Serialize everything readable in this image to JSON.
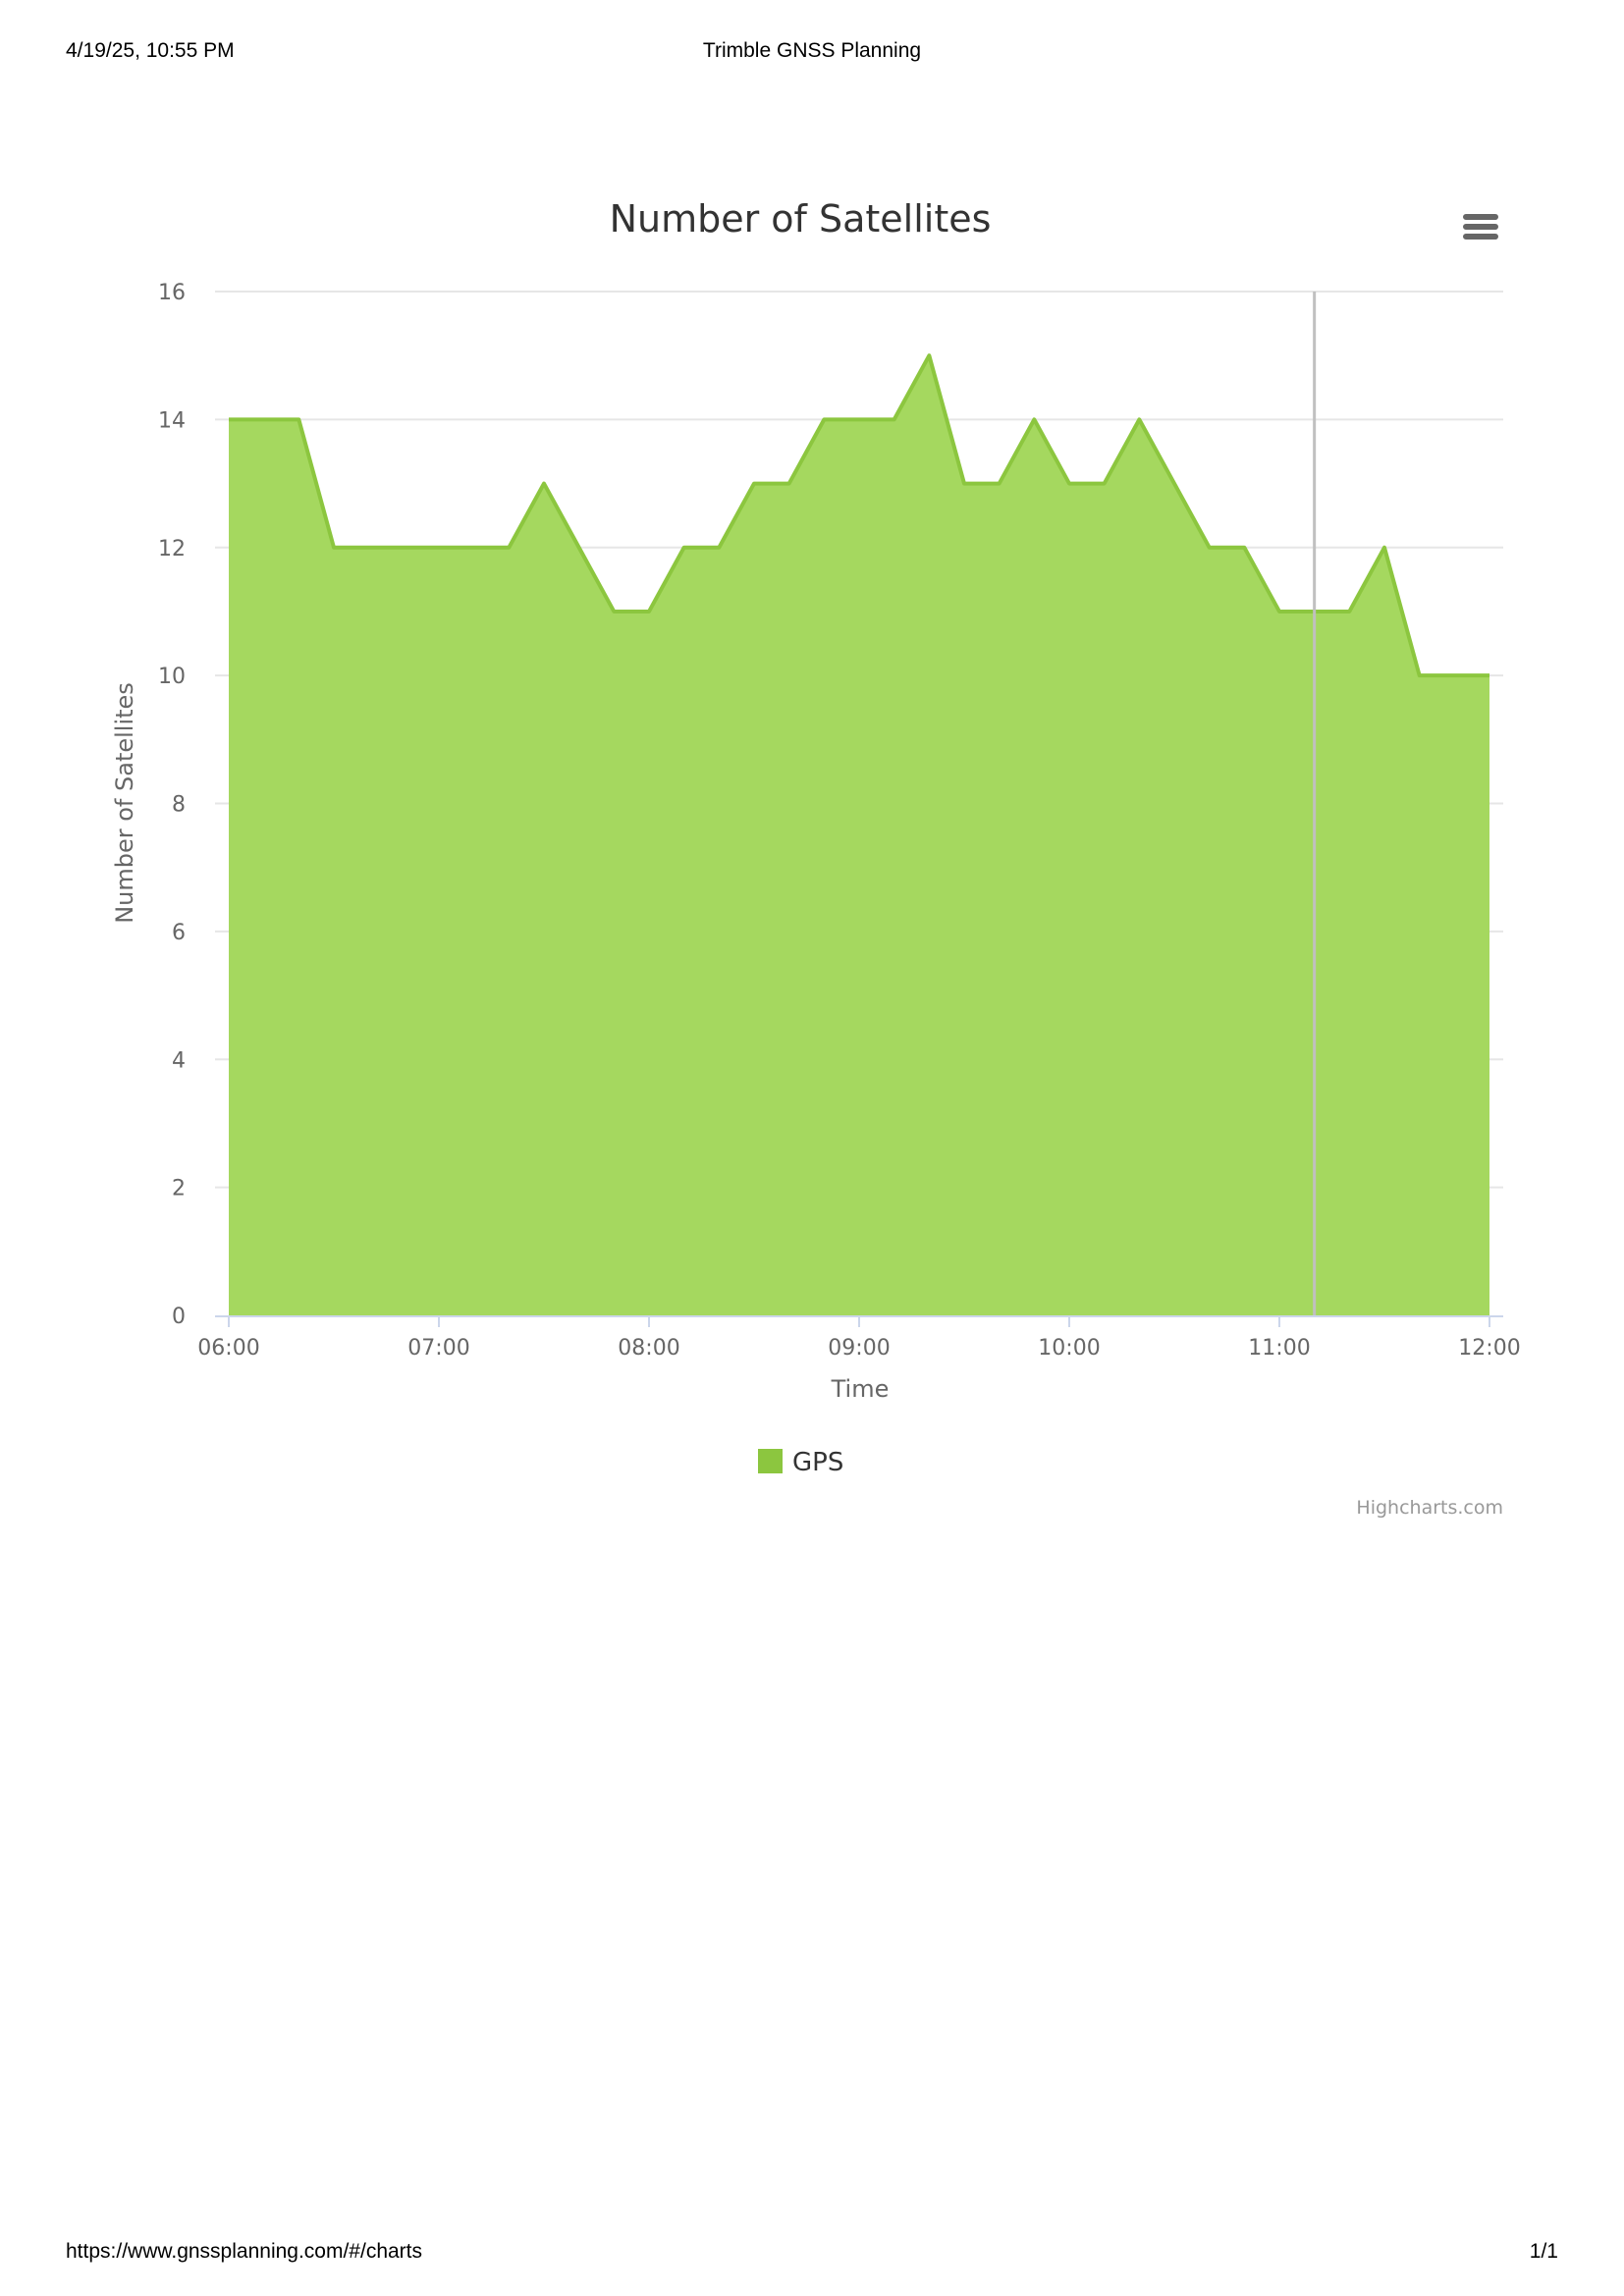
{
  "print": {
    "datetime": "4/19/25, 10:55 PM",
    "page_title": "Trimble GNSS Planning",
    "url": "https://www.gnssplanning.com/#/charts",
    "page_count": "1/1"
  },
  "menu": {
    "icon": "hamburger-menu-icon"
  },
  "credits": "Highcharts.com",
  "chart_data": {
    "type": "area",
    "title": "Number of Satellites",
    "xlabel": "Time",
    "ylabel": "Number of Satellites",
    "ylim": [
      0,
      16
    ],
    "yticks": [
      "0",
      "2",
      "4",
      "6",
      "8",
      "10",
      "12",
      "14",
      "16"
    ],
    "xlim": [
      "06:00",
      "12:00"
    ],
    "xticks": [
      "06:00",
      "07:00",
      "08:00",
      "09:00",
      "10:00",
      "11:00",
      "12:00"
    ],
    "grid": true,
    "legend_position": "bottom-center",
    "current_time_marker": "11:10",
    "x": [
      "06:00",
      "06:10",
      "06:20",
      "06:30",
      "06:40",
      "06:50",
      "07:00",
      "07:10",
      "07:20",
      "07:30",
      "07:40",
      "07:50",
      "08:00",
      "08:10",
      "08:20",
      "08:30",
      "08:40",
      "08:50",
      "09:00",
      "09:10",
      "09:20",
      "09:30",
      "09:40",
      "09:50",
      "10:00",
      "10:10",
      "10:20",
      "10:30",
      "10:40",
      "10:50",
      "11:00",
      "11:10",
      "11:20",
      "11:30",
      "11:40",
      "11:50",
      "12:00"
    ],
    "series": [
      {
        "name": "GPS",
        "color": "#8cc63f",
        "fill": "#a5d85f",
        "values": [
          14,
          14,
          14,
          12,
          12,
          12,
          12,
          12,
          12,
          13,
          12,
          11,
          11,
          12,
          12,
          13,
          13,
          14,
          14,
          14,
          15,
          13,
          13,
          14,
          13,
          13,
          14,
          13,
          12,
          12,
          11,
          11,
          11,
          12,
          10,
          10,
          10
        ]
      }
    ]
  }
}
